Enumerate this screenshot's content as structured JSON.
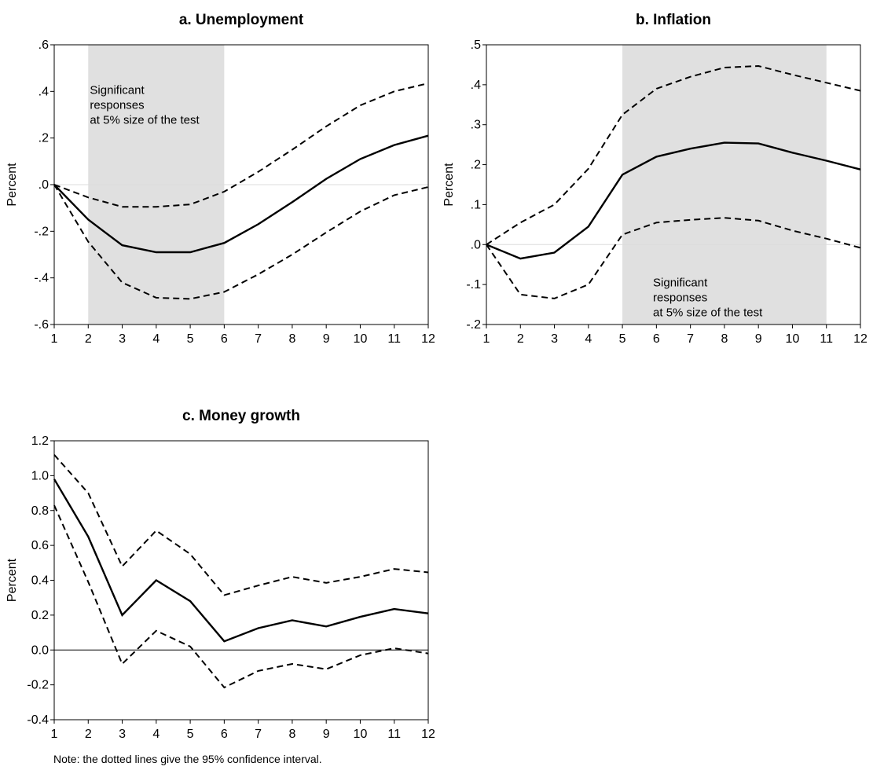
{
  "note": "Note: the dotted lines give the 95% confidence interval.",
  "chart_data": [
    {
      "id": "a",
      "type": "line",
      "title": "a. Unemployment",
      "ylabel": "Percent",
      "xlabel": "",
      "x": [
        1,
        2,
        3,
        4,
        5,
        6,
        7,
        8,
        9,
        10,
        11,
        12
      ],
      "ylim": [
        -0.6,
        0.6
      ],
      "yticks": [
        -0.6,
        -0.4,
        -0.2,
        0.0,
        0.2,
        0.4,
        0.6
      ],
      "ytick_labels": [
        "-.6",
        "-.4",
        "-.2",
        ".0",
        ".2",
        ".4",
        ".6"
      ],
      "zero_line": true,
      "shaded_region": [
        2,
        6
      ],
      "annotation": {
        "lines": [
          "Significant",
          "responses",
          "at 5% size of the test"
        ],
        "x": 2.05,
        "y": 0.39
      },
      "series": [
        {
          "style": "solid",
          "values": [
            0.0,
            -0.15,
            -0.26,
            -0.29,
            -0.29,
            -0.25,
            -0.17,
            -0.075,
            0.025,
            0.11,
            0.17,
            0.21
          ]
        },
        {
          "style": "dashed",
          "values": [
            0.0,
            -0.055,
            -0.095,
            -0.095,
            -0.085,
            -0.03,
            0.055,
            0.15,
            0.25,
            0.34,
            0.4,
            0.435
          ]
        },
        {
          "style": "dashed",
          "values": [
            0.0,
            -0.245,
            -0.42,
            -0.485,
            -0.49,
            -0.46,
            -0.385,
            -0.3,
            -0.205,
            -0.115,
            -0.045,
            -0.01
          ]
        }
      ]
    },
    {
      "id": "b",
      "type": "line",
      "title": "b. Inflation",
      "ylabel": "Percent",
      "xlabel": "",
      "x": [
        1,
        2,
        3,
        4,
        5,
        6,
        7,
        8,
        9,
        10,
        11,
        12
      ],
      "ylim": [
        -0.2,
        0.5
      ],
      "yticks": [
        -0.2,
        -0.1,
        0.0,
        0.1,
        0.2,
        0.3,
        0.4,
        0.5
      ],
      "ytick_labels": [
        "-.2",
        "-.1",
        ".0",
        ".1",
        ".2",
        ".3",
        ".4",
        ".5"
      ],
      "zero_line": true,
      "shaded_region": [
        5,
        11
      ],
      "annotation": {
        "lines": [
          "Significant",
          "responses",
          "at 5% size of the test"
        ],
        "x": 5.9,
        "y": -0.105
      },
      "series": [
        {
          "style": "solid",
          "values": [
            0.0,
            -0.035,
            -0.02,
            0.045,
            0.175,
            0.22,
            0.24,
            0.255,
            0.253,
            0.23,
            0.21,
            0.188
          ]
        },
        {
          "style": "dashed",
          "values": [
            0.0,
            0.055,
            0.1,
            0.19,
            0.325,
            0.39,
            0.42,
            0.443,
            0.447,
            0.425,
            0.405,
            0.385
          ]
        },
        {
          "style": "dashed",
          "values": [
            0.0,
            -0.125,
            -0.135,
            -0.1,
            0.025,
            0.055,
            0.062,
            0.067,
            0.06,
            0.035,
            0.015,
            -0.008
          ]
        }
      ]
    },
    {
      "id": "c",
      "type": "line",
      "title": "c. Money growth",
      "ylabel": "Percent",
      "xlabel": "",
      "x": [
        1,
        2,
        3,
        4,
        5,
        6,
        7,
        8,
        9,
        10,
        11,
        12
      ],
      "ylim": [
        -0.4,
        1.2
      ],
      "yticks": [
        -0.4,
        -0.2,
        0.0,
        0.2,
        0.4,
        0.6,
        0.8,
        1.0,
        1.2
      ],
      "ytick_labels": [
        "-0.4",
        "-0.2",
        "0.0",
        "0.2",
        "0.4",
        "0.6",
        "0.8",
        "1.0",
        "1.2"
      ],
      "zero_line": true,
      "shaded_region": null,
      "annotation": null,
      "series": [
        {
          "style": "solid",
          "values": [
            0.98,
            0.65,
            0.2,
            0.4,
            0.28,
            0.05,
            0.125,
            0.17,
            0.135,
            0.19,
            0.235,
            0.21
          ]
        },
        {
          "style": "dashed",
          "values": [
            1.12,
            0.9,
            0.48,
            0.685,
            0.55,
            0.315,
            0.37,
            0.42,
            0.385,
            0.42,
            0.465,
            0.445
          ]
        },
        {
          "style": "dashed",
          "values": [
            0.83,
            0.39,
            -0.08,
            0.11,
            0.02,
            -0.215,
            -0.12,
            -0.08,
            -0.11,
            -0.03,
            0.01,
            -0.02
          ]
        }
      ]
    }
  ]
}
